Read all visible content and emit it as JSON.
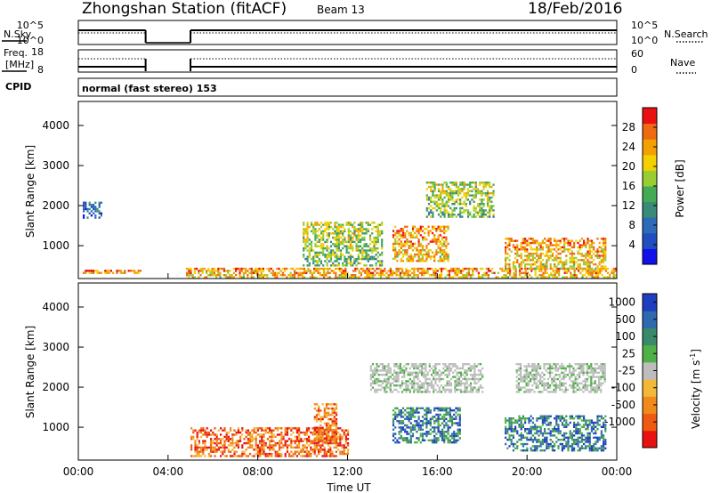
{
  "header": {
    "title": "Zhongshan Station (fitACF)",
    "beam": "Beam 13",
    "date": "18/Feb/2016"
  },
  "panels": {
    "nsky": {
      "label": "N.Sky",
      "left_ticks": [
        "10^5",
        "10^0"
      ],
      "right_label": "N.Search",
      "right_ticks": [
        "10^5",
        "10^0"
      ]
    },
    "freq": {
      "label_line1": "Freq.",
      "label_line2": "[MHz]",
      "left_ticks": [
        "18",
        "8"
      ],
      "right_label": "Nave",
      "right_ticks": [
        "60",
        "0"
      ]
    },
    "cpid": {
      "label": "CPID",
      "text": "normal (fast stereo) 153"
    }
  },
  "colors": {
    "power": [
      "#1010e8",
      "#1e4ec0",
      "#2e6ab8",
      "#3a8a78",
      "#44aa55",
      "#9acd32",
      "#f5d000",
      "#f4a000",
      "#ee6a10",
      "#e81010"
    ],
    "velocity_neg": [
      "#e81010",
      "#ee5a12",
      "#f08a1c",
      "#f4b838"
    ],
    "velocity_pos": [
      "#1e3fc0",
      "#2f6ab0",
      "#3a8a6a",
      "#50b048"
    ],
    "velocity_gs": "#bdbdbd"
  },
  "chart_data": [
    {
      "type": "heatmap",
      "name": "power",
      "xlabel": "",
      "ylabel": "Slant Range [km]",
      "xlim": [
        0,
        24
      ],
      "ylim": [
        180,
        4600
      ],
      "y_ticks": [
        "1000",
        "2000",
        "3000",
        "4000"
      ],
      "x_ticks": [],
      "colorbar": {
        "label": "Power [dB]",
        "range": [
          0,
          32
        ],
        "ticks": [
          "4",
          "8",
          "12",
          "16",
          "20",
          "24",
          "28"
        ]
      },
      "echo_regions": [
        {
          "t": [
            0.2,
            2.8
          ],
          "r": [
            300,
            400
          ],
          "level": "high"
        },
        {
          "t": [
            0.2,
            1.0
          ],
          "r": [
            1700,
            2100
          ],
          "level": "low"
        },
        {
          "t": [
            4.8,
            24.0
          ],
          "r": [
            200,
            450
          ],
          "level": "high"
        },
        {
          "t": [
            10.0,
            13.5
          ],
          "r": [
            500,
            1600
          ],
          "level": "medium"
        },
        {
          "t": [
            14.0,
            16.5
          ],
          "r": [
            600,
            1500
          ],
          "level": "high"
        },
        {
          "t": [
            19.0,
            23.5
          ],
          "r": [
            450,
            1200
          ],
          "level": "high"
        },
        {
          "t": [
            15.5,
            18.5
          ],
          "r": [
            1700,
            2600
          ],
          "level": "medium"
        }
      ]
    },
    {
      "type": "heatmap",
      "name": "velocity",
      "xlabel": "Time UT",
      "ylabel": "Slant Range [km]",
      "xlim": [
        0,
        24
      ],
      "ylim": [
        180,
        4600
      ],
      "y_ticks": [
        "1000",
        "2000",
        "3000",
        "4000"
      ],
      "x_ticks": [
        "00:00",
        "04:00",
        "08:00",
        "12:00",
        "16:00",
        "20:00",
        "00:00"
      ],
      "colorbar": {
        "label": "Velocity [m s^-1]",
        "ticks": [
          "1000",
          "500",
          "100",
          "25",
          "-25",
          "-100",
          "-500",
          "-1000"
        ]
      },
      "echo_regions": [
        {
          "t": [
            5.0,
            12.0
          ],
          "r": [
            300,
            1000
          ],
          "sign": "negative"
        },
        {
          "t": [
            10.5,
            11.5
          ],
          "r": [
            600,
            1600
          ],
          "sign": "negative"
        },
        {
          "t": [
            14.0,
            17.0
          ],
          "r": [
            600,
            1500
          ],
          "sign": "positive"
        },
        {
          "t": [
            13.0,
            18.0
          ],
          "r": [
            1900,
            2600
          ],
          "sign": "ground"
        },
        {
          "t": [
            19.5,
            23.5
          ],
          "r": [
            1900,
            2600
          ],
          "sign": "ground"
        },
        {
          "t": [
            19.0,
            23.5
          ],
          "r": [
            400,
            1300
          ],
          "sign": "positive"
        }
      ]
    }
  ]
}
